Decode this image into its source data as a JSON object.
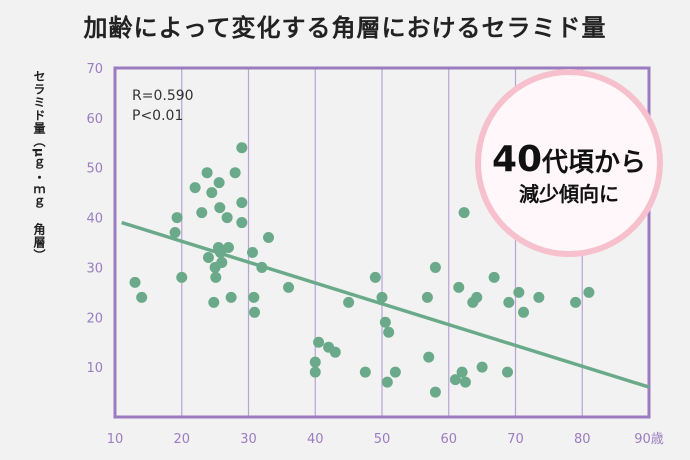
{
  "title": "加齢によって変化する角層におけるセラミド量",
  "y_axis_label": "セラミド量（μｇ・ｍｇ　角層）",
  "stats": {
    "r": "R=0.590",
    "p": "P<0.01"
  },
  "callout": {
    "big": "40",
    "big_suffix": "代頃から",
    "small": "減少傾向に"
  },
  "colors": {
    "points": "#6aaa8a",
    "line": "#6aaa8a",
    "frame": "#9b7cc0",
    "grid": "#b9a3d6",
    "callout_fill": "#fff7f9",
    "callout_ring": "#f6c1cc"
  },
  "chart_data": {
    "type": "scatter",
    "title": "加齢によって変化する角層におけるセラミド量",
    "xlabel": "",
    "ylabel": "セラミド量（μｇ・ｍｇ　角層）",
    "xlim": [
      10,
      90
    ],
    "ylim": [
      0,
      70
    ],
    "x_ticks": [
      "10",
      "20",
      "30",
      "40",
      "50",
      "60",
      "70",
      "80",
      "90歳"
    ],
    "y_ticks": [
      "10",
      "20",
      "30",
      "40",
      "50",
      "60",
      "70"
    ],
    "grid": "vertical",
    "trendline": {
      "x": [
        11,
        90
      ],
      "y": [
        39,
        6
      ]
    },
    "points": [
      [
        13,
        27
      ],
      [
        14,
        24
      ],
      [
        19,
        37
      ],
      [
        19.3,
        40
      ],
      [
        20,
        28
      ],
      [
        22,
        46
      ],
      [
        23,
        41
      ],
      [
        23.8,
        49
      ],
      [
        24,
        32
      ],
      [
        24.5,
        45
      ],
      [
        24.8,
        23
      ],
      [
        25,
        30
      ],
      [
        25.1,
        28
      ],
      [
        25.5,
        34
      ],
      [
        25.6,
        47
      ],
      [
        25.7,
        42
      ],
      [
        25.8,
        33
      ],
      [
        26,
        31
      ],
      [
        26.8,
        40
      ],
      [
        27,
        34
      ],
      [
        27.4,
        24
      ],
      [
        28,
        49
      ],
      [
        29,
        54
      ],
      [
        29,
        43
      ],
      [
        29,
        39
      ],
      [
        30.6,
        33
      ],
      [
        30.8,
        24
      ],
      [
        30.9,
        21
      ],
      [
        32,
        30
      ],
      [
        33,
        36
      ],
      [
        36,
        26
      ],
      [
        40,
        11
      ],
      [
        40,
        9
      ],
      [
        40.5,
        15
      ],
      [
        42,
        14
      ],
      [
        43,
        13
      ],
      [
        45,
        23
      ],
      [
        47.5,
        9
      ],
      [
        49,
        28
      ],
      [
        50,
        24
      ],
      [
        50.5,
        19
      ],
      [
        50.8,
        7
      ],
      [
        51,
        17
      ],
      [
        52,
        9
      ],
      [
        56.8,
        24
      ],
      [
        57,
        12
      ],
      [
        58,
        30
      ],
      [
        58,
        5
      ],
      [
        61,
        7.5
      ],
      [
        61.5,
        26
      ],
      [
        62,
        9
      ],
      [
        62.3,
        41
      ],
      [
        62.5,
        7
      ],
      [
        63.6,
        23
      ],
      [
        64.2,
        24
      ],
      [
        65,
        10
      ],
      [
        66.8,
        28
      ],
      [
        68.8,
        9
      ],
      [
        69,
        23
      ],
      [
        70.5,
        25
      ],
      [
        71.2,
        21
      ],
      [
        73.5,
        24
      ],
      [
        79,
        23
      ],
      [
        81,
        25
      ]
    ]
  }
}
